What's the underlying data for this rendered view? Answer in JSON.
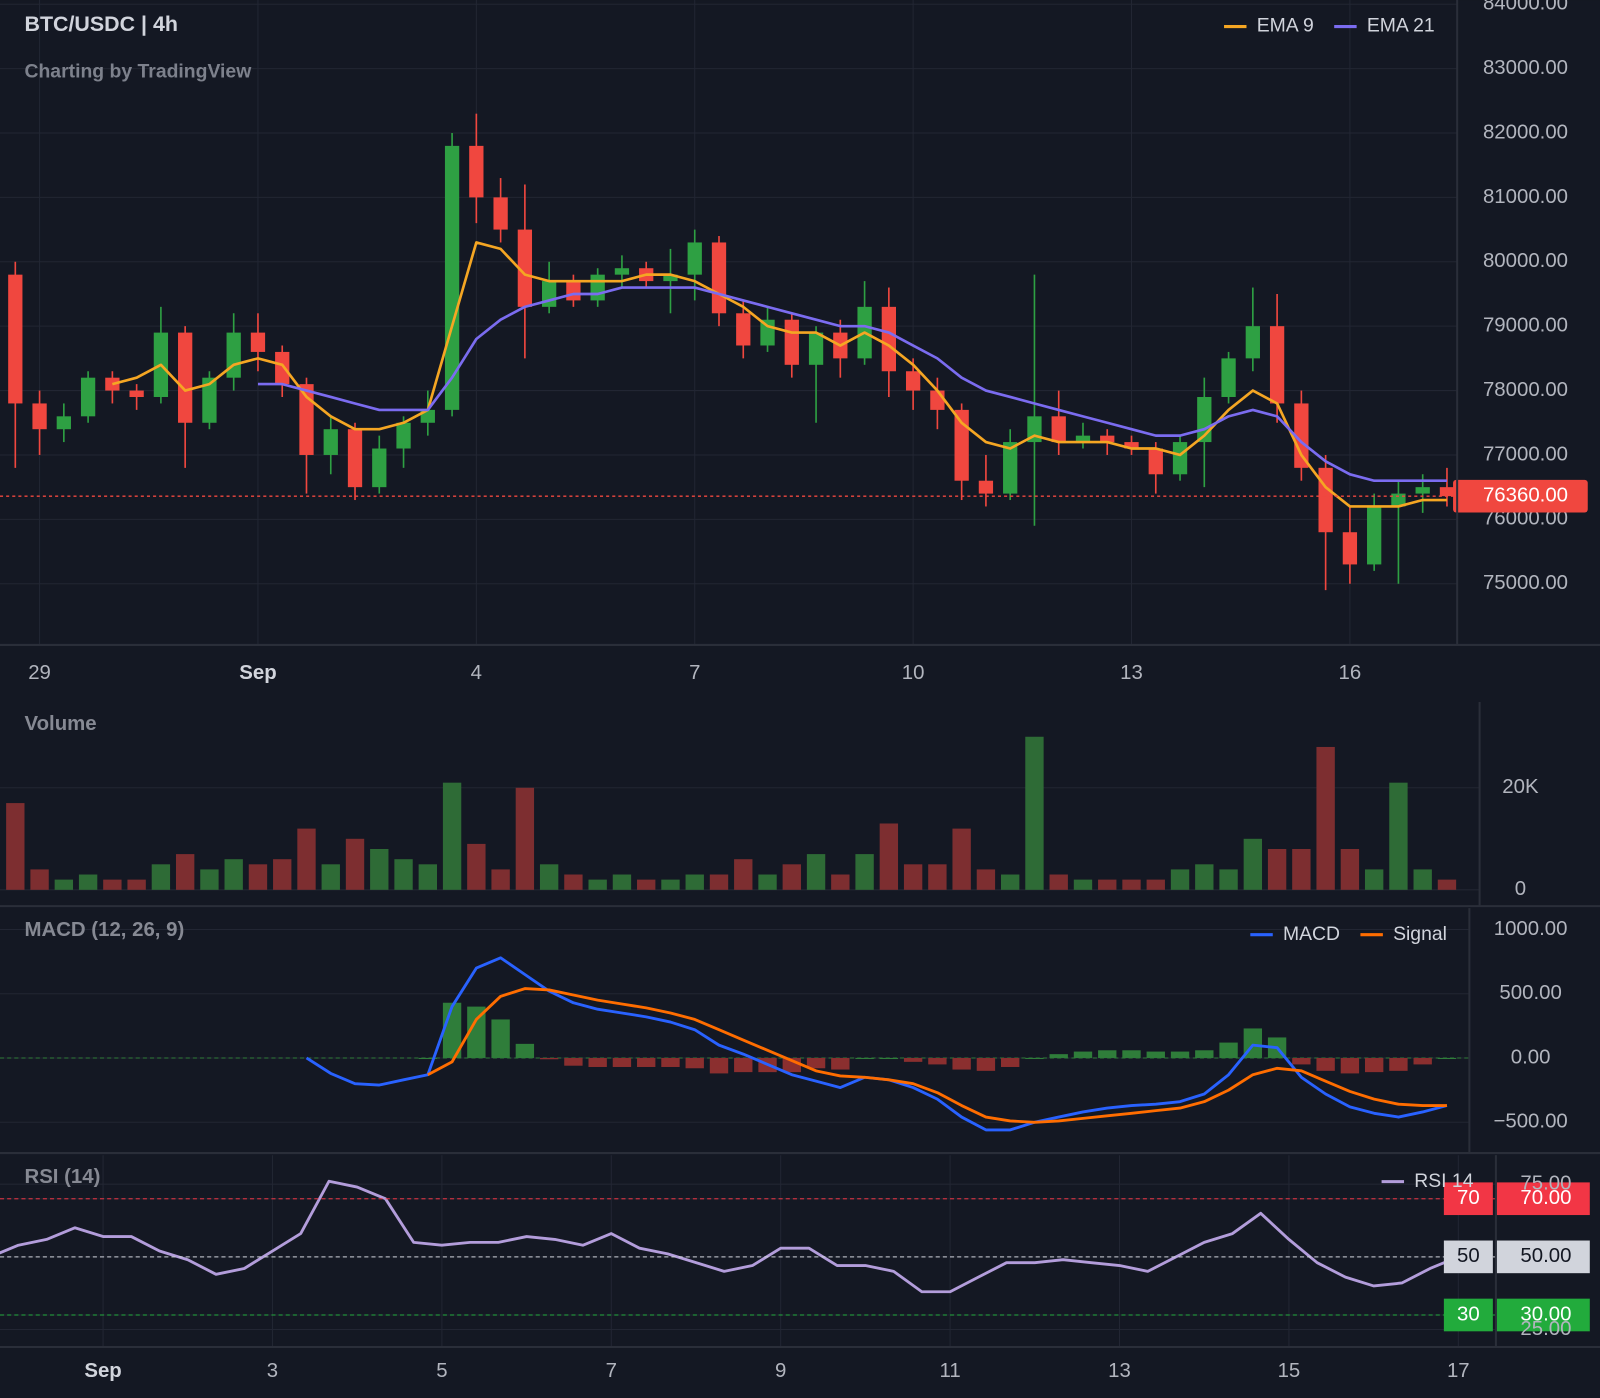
{
  "chart_data": [
    {
      "type": "candlestick",
      "title": "BTC/USDC | 4h",
      "subtitle": "Charting by TradingView",
      "open": [
        79800,
        77800,
        77400,
        77600,
        78200,
        78000,
        77900,
        78900,
        77500,
        78200,
        78900,
        78600,
        78100,
        77000,
        77400,
        76500,
        77100,
        77500,
        77700,
        81800,
        81000,
        80500,
        79300,
        79700,
        79400,
        79800,
        79900,
        79700,
        79800,
        80300,
        79200,
        78700,
        79100,
        78400,
        78900,
        78500,
        79300,
        78300,
        78000,
        77700,
        76600,
        76400,
        77200,
        77600,
        77200,
        77300,
        77200,
        77100,
        76700,
        77200,
        77900,
        78500,
        79000,
        77800,
        76800,
        75800,
        75300,
        76200,
        76400,
        76500
      ],
      "high": [
        80000,
        78000,
        77800,
        78300,
        78300,
        78100,
        79300,
        79000,
        78300,
        79200,
        79200,
        78700,
        78200,
        77600,
        77500,
        77300,
        77600,
        78000,
        82000,
        82300,
        81300,
        81200,
        80000,
        79800,
        79900,
        80100,
        80000,
        80200,
        80500,
        80400,
        79400,
        79300,
        79200,
        79000,
        79100,
        79700,
        79600,
        78500,
        78200,
        77800,
        77000,
        77400,
        79800,
        78000,
        77500,
        77400,
        77300,
        77200,
        77300,
        78200,
        78600,
        79600,
        79500,
        78000,
        77000,
        76200,
        76400,
        76600,
        76700,
        76800
      ],
      "low": [
        76800,
        77000,
        77200,
        77500,
        77800,
        77700,
        77800,
        76800,
        77400,
        78000,
        78300,
        77900,
        76400,
        76700,
        76300,
        76400,
        76800,
        77300,
        77600,
        80600,
        80300,
        78500,
        79200,
        79300,
        79300,
        79600,
        79600,
        79200,
        79400,
        79000,
        78500,
        78600,
        78200,
        77500,
        78200,
        78400,
        77900,
        77700,
        77400,
        76300,
        76200,
        76300,
        75900,
        77000,
        77100,
        77000,
        77000,
        76400,
        76600,
        76500,
        77800,
        78300,
        77500,
        76600,
        74900,
        75000,
        75200,
        75000,
        76100,
        76200
      ],
      "close": [
        77800,
        77400,
        77600,
        78200,
        78000,
        77900,
        78900,
        77500,
        78200,
        78900,
        78600,
        78100,
        77000,
        77400,
        76500,
        77100,
        77500,
        77700,
        81800,
        81000,
        80500,
        79300,
        79700,
        79400,
        79800,
        79900,
        79700,
        79800,
        80300,
        79200,
        78700,
        79100,
        78400,
        78900,
        78500,
        79300,
        78300,
        78000,
        77700,
        76600,
        76400,
        77200,
        77600,
        77200,
        77300,
        77200,
        77100,
        76700,
        77200,
        77900,
        78500,
        79000,
        77800,
        76800,
        75800,
        75300,
        76200,
        76400,
        76500,
        76360
      ],
      "up_color": "#2ea043",
      "down_color": "#f0473f",
      "series": [
        {
          "name": "EMA 9",
          "color": "#f5a623",
          "values": [
            null,
            null,
            null,
            null,
            78100,
            78200,
            78400,
            78000,
            78100,
            78400,
            78500,
            78400,
            77900,
            77600,
            77400,
            77400,
            77500,
            77700,
            79000,
            80300,
            80200,
            79800,
            79700,
            79700,
            79700,
            79700,
            79800,
            79800,
            79700,
            79500,
            79300,
            79000,
            78900,
            78900,
            78700,
            78900,
            78700,
            78400,
            78000,
            77500,
            77200,
            77100,
            77300,
            77200,
            77200,
            77200,
            77100,
            77100,
            77000,
            77300,
            77700,
            78000,
            77800,
            77000,
            76500,
            76200,
            76200,
            76200,
            76300,
            76300
          ]
        },
        {
          "name": "EMA 21",
          "color": "#7b6cf0",
          "values": [
            null,
            null,
            null,
            null,
            null,
            null,
            null,
            null,
            null,
            null,
            78100,
            78100,
            78000,
            77900,
            77800,
            77700,
            77700,
            77700,
            78200,
            78800,
            79100,
            79300,
            79400,
            79500,
            79500,
            79600,
            79600,
            79600,
            79600,
            79500,
            79400,
            79300,
            79200,
            79100,
            79000,
            79000,
            78900,
            78700,
            78500,
            78200,
            78000,
            77900,
            77800,
            77700,
            77600,
            77500,
            77400,
            77300,
            77300,
            77400,
            77600,
            77700,
            77600,
            77200,
            76900,
            76700,
            76600,
            76600,
            76600,
            76600
          ]
        }
      ],
      "legend": "top-right",
      "last_price": {
        "value": 76360,
        "label": "76360.00"
      },
      "ylim": [
        74050,
        84065
      ],
      "yticks": [
        {
          "value": 75000,
          "label": "75000.00"
        },
        {
          "value": 76000,
          "label": "76000.00"
        },
        {
          "value": 77000,
          "label": "77000.00"
        },
        {
          "value": 78000,
          "label": "78000.00"
        },
        {
          "value": 79000,
          "label": "79000.00"
        },
        {
          "value": 80000,
          "label": "80000.00"
        },
        {
          "value": 81000,
          "label": "81000.00"
        },
        {
          "value": 82000,
          "label": "82000.00"
        },
        {
          "value": 83000,
          "label": "83000.00"
        },
        {
          "value": 84000,
          "label": "84000.00"
        }
      ],
      "xticks": [
        {
          "value": 1,
          "label": "29"
        },
        {
          "value": 10,
          "label": "Sep"
        },
        {
          "value": 19,
          "label": "4"
        },
        {
          "value": 28,
          "label": "7"
        },
        {
          "value": 37,
          "label": "10"
        },
        {
          "value": 46,
          "label": "13"
        },
        {
          "value": 55,
          "label": "16"
        }
      ],
      "grid": true
    },
    {
      "type": "bar",
      "title": "Volume",
      "values": [
        17000,
        4000,
        2000,
        3000,
        2000,
        2000,
        5000,
        7000,
        4000,
        6000,
        5000,
        6000,
        12000,
        5000,
        10000,
        8000,
        6000,
        5000,
        21000,
        9000,
        4000,
        20000,
        5000,
        3000,
        2000,
        3000,
        2000,
        2000,
        3000,
        3000,
        6000,
        3000,
        5000,
        7000,
        3000,
        7000,
        13000,
        5000,
        5000,
        12000,
        4000,
        3000,
        30000,
        3000,
        2000,
        2000,
        2000,
        2000,
        4000,
        5000,
        4000,
        10000,
        8000,
        8000,
        28000,
        8000,
        4000,
        21000,
        4000,
        2000
      ],
      "up_color": "#2e6b36",
      "down_color": "#7d2e30",
      "ylim": [
        0,
        36000
      ],
      "yticks": [
        0,
        {
          "value": 20000,
          "label": "20K"
        }
      ]
    },
    {
      "type": "line",
      "title": "MACD (12, 26, 9)",
      "series": [
        {
          "name": "MACD",
          "color": "#2962ff",
          "values": [
            null,
            null,
            null,
            null,
            null,
            null,
            null,
            null,
            null,
            null,
            null,
            null,
            0,
            -120,
            -200,
            -210,
            -170,
            -130,
            400,
            700,
            780,
            650,
            520,
            430,
            380,
            350,
            320,
            280,
            220,
            100,
            30,
            -50,
            -130,
            -180,
            -230,
            -150,
            -170,
            -230,
            -320,
            -460,
            -560,
            -560,
            -500,
            -460,
            -420,
            -390,
            -370,
            -360,
            -340,
            -280,
            -130,
            100,
            80,
            -150,
            -280,
            -380,
            -430,
            -460,
            -420,
            -370
          ]
        },
        {
          "name": "Signal",
          "color": "#ff6d00",
          "values": [
            null,
            null,
            null,
            null,
            null,
            null,
            null,
            null,
            null,
            null,
            null,
            null,
            null,
            null,
            null,
            null,
            null,
            -130,
            -30,
            300,
            480,
            540,
            530,
            490,
            450,
            420,
            390,
            350,
            300,
            220,
            140,
            60,
            -20,
            -100,
            -140,
            -150,
            -170,
            -200,
            -270,
            -370,
            -460,
            -490,
            -500,
            -490,
            -470,
            -450,
            -430,
            -410,
            -390,
            -340,
            -250,
            -130,
            -80,
            -100,
            -180,
            -260,
            -320,
            -360,
            -370,
            -370
          ]
        }
      ],
      "histogram": {
        "up_color": "#2f7d3a",
        "down_color": "#8b2f2f",
        "values": [
          null,
          null,
          null,
          null,
          null,
          null,
          null,
          null,
          null,
          null,
          null,
          null,
          null,
          null,
          null,
          null,
          null,
          0,
          430,
          400,
          300,
          110,
          -10,
          -60,
          -70,
          -70,
          -70,
          -70,
          -80,
          -120,
          -110,
          -110,
          -110,
          -80,
          -90,
          0,
          0,
          -30,
          -50,
          -90,
          -100,
          -70,
          0,
          30,
          50,
          60,
          60,
          50,
          50,
          60,
          120,
          230,
          160,
          -50,
          -100,
          -120,
          -110,
          -100,
          -50,
          0
        ]
      },
      "legend": "top-right",
      "ylim": [
        -740,
        1150
      ],
      "yticks": [
        {
          "value": 1000,
          "label": "1000.00"
        },
        {
          "value": 500,
          "label": "500.00"
        },
        {
          "value": 0,
          "label": "0.00"
        },
        {
          "value": -500,
          "label": "−500.00"
        }
      ]
    },
    {
      "type": "line",
      "title": "RSI (14)",
      "series": [
        {
          "name": "RSI 14",
          "color": "#b39ddb",
          "values": [
            50,
            54,
            56,
            60,
            57,
            57,
            52,
            49,
            44,
            46,
            52,
            58,
            76,
            74,
            70,
            55,
            54,
            55,
            55,
            57,
            56,
            54,
            58,
            53,
            51,
            48,
            45,
            47,
            53,
            53,
            47,
            47,
            45,
            38,
            38,
            43,
            48,
            48,
            49,
            48,
            47,
            45,
            50,
            55,
            58,
            65,
            56,
            48,
            43,
            40,
            41,
            46,
            50
          ]
        }
      ],
      "legend": "top-right",
      "levels": [
        {
          "value": 70,
          "label": "70",
          "color": "#f23645"
        },
        {
          "value": 50,
          "label": "50",
          "color": "#d1d4dc"
        },
        {
          "value": 30,
          "label": "30",
          "color": "#22ab3c"
        }
      ],
      "ylim": [
        19,
        85
      ],
      "yticks": [
        {
          "value": 75,
          "label": "75.00"
        },
        {
          "value": 70,
          "label": "70.00"
        },
        {
          "value": 50,
          "label": "50.00"
        },
        {
          "value": 30,
          "label": "30.00"
        },
        {
          "value": 25,
          "label": "25.00"
        }
      ],
      "xticks": [
        {
          "value": 4,
          "label": "Sep"
        },
        {
          "value": 10,
          "label": "3"
        },
        {
          "value": 16,
          "label": "5"
        },
        {
          "value": 22,
          "label": "7"
        },
        {
          "value": 28,
          "label": "9"
        },
        {
          "value": 34,
          "label": "11"
        },
        {
          "value": 40,
          "label": "13"
        },
        {
          "value": 46,
          "label": "15"
        },
        {
          "value": 52,
          "label": "17"
        }
      ],
      "grid": true
    }
  ]
}
